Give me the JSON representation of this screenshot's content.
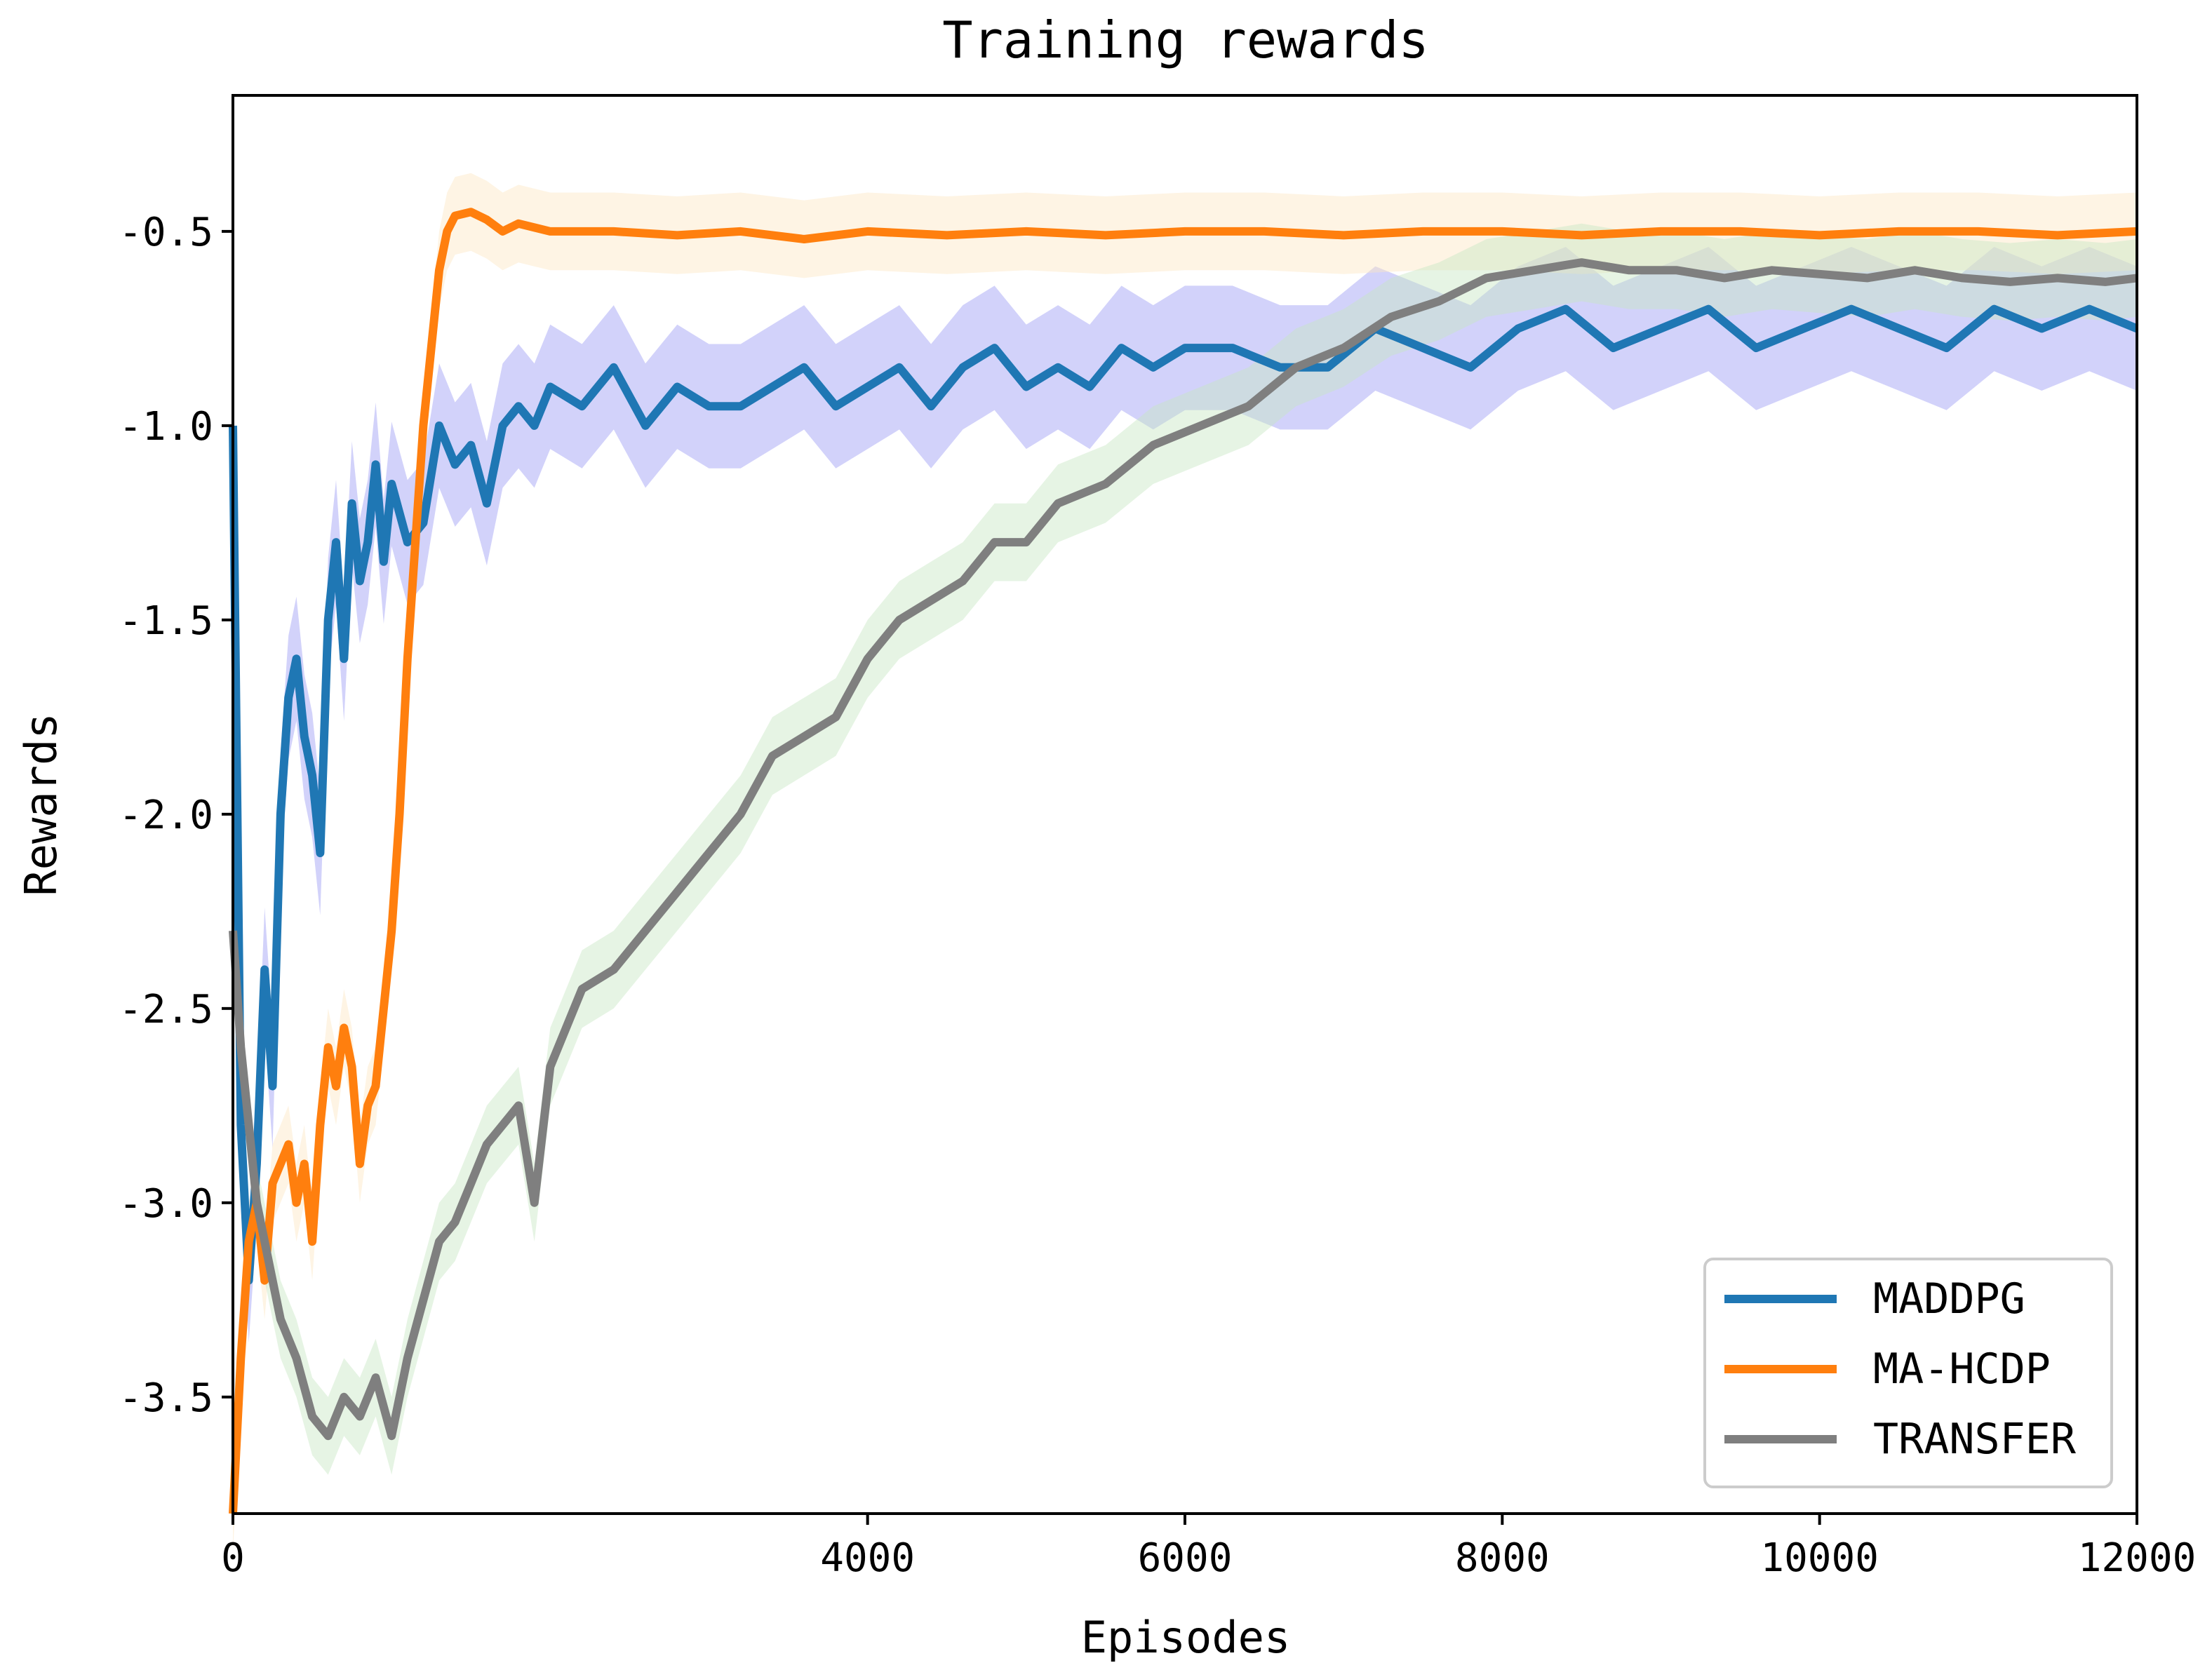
{
  "chart_data": {
    "type": "line",
    "title": "Training rewards",
    "xlabel": "Episodes",
    "ylabel": "Rewards",
    "xlim": [
      0,
      12000
    ],
    "ylim": [
      -3.8,
      -0.15
    ],
    "x_ticks": [
      0,
      4000,
      6000,
      8000,
      10000,
      12000
    ],
    "x_tick_labels": [
      "0",
      "4000",
      "6000",
      "8000",
      "10000",
      "12000"
    ],
    "y_ticks": [
      -0.5,
      -1.0,
      -1.5,
      -2.0,
      -2.5,
      -3.0,
      -3.5
    ],
    "y_tick_labels": [
      "-0.5",
      "-1.0",
      "-1.5",
      "-2.0",
      "-2.5",
      "-3.0",
      "-3.5"
    ],
    "grid": false,
    "legend_position": "lower-right",
    "series": [
      {
        "name": "MADDPG",
        "color": "#1f77b4",
        "band_color": "#9c9cf5",
        "x": [
          0,
          50,
          100,
          150,
          200,
          250,
          300,
          350,
          400,
          450,
          500,
          550,
          600,
          650,
          700,
          750,
          800,
          850,
          900,
          950,
          1000,
          1100,
          1200,
          1300,
          1400,
          1500,
          1600,
          1700,
          1800,
          1900,
          2000,
          2200,
          2400,
          2600,
          2800,
          3000,
          3200,
          3400,
          3600,
          3800,
          4000,
          4200,
          4400,
          4600,
          4800,
          5000,
          5200,
          5400,
          5600,
          5800,
          6000,
          6300,
          6600,
          6900,
          7200,
          7500,
          7800,
          8100,
          8400,
          8700,
          9000,
          9300,
          9600,
          9900,
          10200,
          10500,
          10800,
          11100,
          11400,
          11700,
          12000
        ],
        "y": [
          -1.0,
          -2.8,
          -3.2,
          -2.9,
          -2.4,
          -2.7,
          -2.0,
          -1.7,
          -1.6,
          -1.8,
          -1.9,
          -2.1,
          -1.5,
          -1.3,
          -1.6,
          -1.2,
          -1.4,
          -1.3,
          -1.1,
          -1.35,
          -1.15,
          -1.3,
          -1.25,
          -1.0,
          -1.1,
          -1.05,
          -1.2,
          -1.0,
          -0.95,
          -1.0,
          -0.9,
          -0.95,
          -0.85,
          -1.0,
          -0.9,
          -0.95,
          -0.95,
          -0.9,
          -0.85,
          -0.95,
          -0.9,
          -0.85,
          -0.95,
          -0.85,
          -0.8,
          -0.9,
          -0.85,
          -0.9,
          -0.8,
          -0.85,
          -0.8,
          -0.8,
          -0.85,
          -0.85,
          -0.75,
          -0.8,
          -0.85,
          -0.75,
          -0.7,
          -0.8,
          -0.75,
          -0.7,
          -0.8,
          -0.75,
          -0.7,
          -0.75,
          -0.8,
          -0.7,
          -0.75,
          -0.7,
          -0.75
        ],
        "band_halfwidth": 0.16
      },
      {
        "name": "MA-HCDP",
        "color": "#ff7f0e",
        "band_color": "#fde6c4",
        "x": [
          0,
          50,
          100,
          150,
          200,
          250,
          300,
          350,
          400,
          450,
          500,
          550,
          600,
          650,
          700,
          750,
          800,
          850,
          900,
          950,
          1000,
          1050,
          1100,
          1150,
          1200,
          1250,
          1300,
          1350,
          1400,
          1500,
          1600,
          1700,
          1800,
          2000,
          2400,
          2800,
          3200,
          3600,
          4000,
          4500,
          5000,
          5500,
          6000,
          6500,
          7000,
          7500,
          8000,
          8500,
          9000,
          9500,
          10000,
          10500,
          11000,
          11500,
          12000
        ],
        "y": [
          -3.8,
          -3.4,
          -3.1,
          -3.0,
          -3.2,
          -2.95,
          -2.9,
          -2.85,
          -3.0,
          -2.9,
          -3.1,
          -2.8,
          -2.6,
          -2.7,
          -2.55,
          -2.65,
          -2.9,
          -2.75,
          -2.7,
          -2.5,
          -2.3,
          -2.0,
          -1.6,
          -1.3,
          -1.0,
          -0.8,
          -0.6,
          -0.5,
          -0.46,
          -0.45,
          -0.47,
          -0.5,
          -0.48,
          -0.5,
          -0.5,
          -0.51,
          -0.5,
          -0.52,
          -0.5,
          -0.51,
          -0.5,
          -0.51,
          -0.5,
          -0.5,
          -0.51,
          -0.5,
          -0.5,
          -0.51,
          -0.5,
          -0.5,
          -0.51,
          -0.5,
          -0.5,
          -0.51,
          -0.5
        ],
        "band_halfwidth": 0.1
      },
      {
        "name": "TRANSFER",
        "color": "#7f7f7f",
        "band_color": "#c8e6c4",
        "x": [
          0,
          50,
          100,
          150,
          200,
          250,
          300,
          400,
          500,
          600,
          700,
          800,
          900,
          1000,
          1100,
          1200,
          1300,
          1400,
          1500,
          1600,
          1700,
          1800,
          1900,
          2000,
          2200,
          2400,
          2600,
          2800,
          3000,
          3200,
          3400,
          3600,
          3800,
          4000,
          4200,
          4400,
          4600,
          4800,
          5000,
          5200,
          5500,
          5800,
          6100,
          6400,
          6700,
          7000,
          7300,
          7600,
          7900,
          8200,
          8500,
          8800,
          9100,
          9400,
          9700,
          10000,
          10300,
          10600,
          10900,
          11200,
          11500,
          11800,
          12000
        ],
        "y": [
          -2.3,
          -2.6,
          -2.8,
          -3.0,
          -3.1,
          -3.2,
          -3.3,
          -3.4,
          -3.55,
          -3.6,
          -3.5,
          -3.55,
          -3.45,
          -3.6,
          -3.4,
          -3.25,
          -3.1,
          -3.05,
          -2.95,
          -2.85,
          -2.8,
          -2.75,
          -3.0,
          -2.65,
          -2.45,
          -2.4,
          -2.3,
          -2.2,
          -2.1,
          -2.0,
          -1.85,
          -1.8,
          -1.75,
          -1.6,
          -1.5,
          -1.45,
          -1.4,
          -1.3,
          -1.3,
          -1.2,
          -1.15,
          -1.05,
          -1.0,
          -0.95,
          -0.85,
          -0.8,
          -0.72,
          -0.68,
          -0.62,
          -0.6,
          -0.58,
          -0.6,
          -0.6,
          -0.62,
          -0.6,
          -0.61,
          -0.62,
          -0.6,
          -0.62,
          -0.63,
          -0.62,
          -0.63,
          -0.62
        ],
        "band_halfwidth": 0.1
      }
    ]
  }
}
